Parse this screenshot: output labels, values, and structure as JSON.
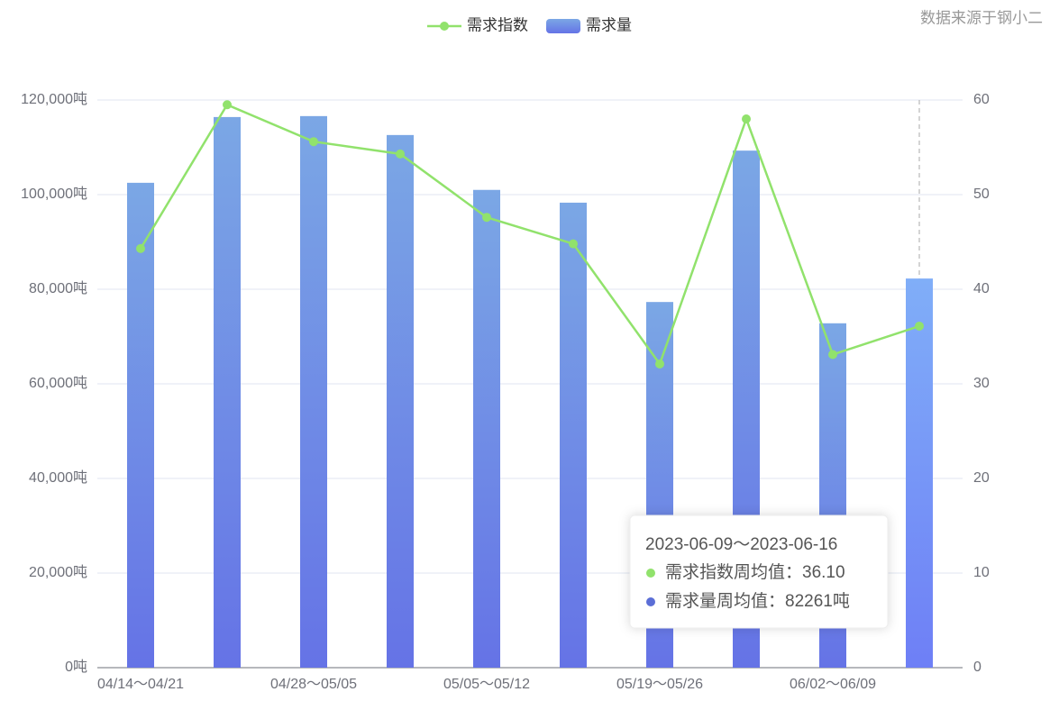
{
  "chart_data": {
    "type": "bar-line",
    "source": "数据来源于钢小二",
    "categories": [
      "04/14～04/21",
      null,
      "04/28～05/05",
      null,
      "05/05～05/12",
      null,
      "05/19～05/26",
      null,
      "06/02～06/09",
      null
    ],
    "series": [
      {
        "name": "需求指数",
        "type": "line",
        "axis": "y2",
        "color": "#91e26c",
        "values": [
          44.3,
          59.5,
          55.6,
          54.3,
          47.6,
          44.8,
          32.1,
          58.0,
          33.1,
          36.1
        ]
      },
      {
        "name": "需求量",
        "type": "bar",
        "axis": "y",
        "color": [
          "#7ba7e5",
          "#6573e6"
        ],
        "highlight_color": [
          "#80aef8",
          "#6e7ff6"
        ],
        "values": [
          102500,
          116400,
          116600,
          112600,
          101000,
          98300,
          77300,
          109300,
          72800,
          82261
        ]
      }
    ],
    "ylim": [
      0,
      120000
    ],
    "yticks": [
      {
        "value": 0,
        "label": "0吨"
      },
      {
        "value": 20000,
        "label": "20,000吨"
      },
      {
        "value": 40000,
        "label": "40,000吨"
      },
      {
        "value": 60000,
        "label": "60,000吨"
      },
      {
        "value": 80000,
        "label": "80,000吨"
      },
      {
        "value": 100000,
        "label": "100,000吨"
      },
      {
        "value": 120000,
        "label": "120,000吨"
      }
    ],
    "y2lim": [
      0,
      60
    ],
    "y2ticks": [
      0,
      10,
      20,
      30,
      40,
      50,
      60
    ],
    "grid": true,
    "legend": "top",
    "tooltip": {
      "index": 9,
      "title": "2023-06-09～2023-06-16",
      "rows": [
        {
          "label": "需求指数周均值：",
          "value": "36.10",
          "color": "#91e26c"
        },
        {
          "label": "需求量周均值：",
          "value": "82261吨",
          "color": "#5b6ed6"
        }
      ]
    }
  }
}
